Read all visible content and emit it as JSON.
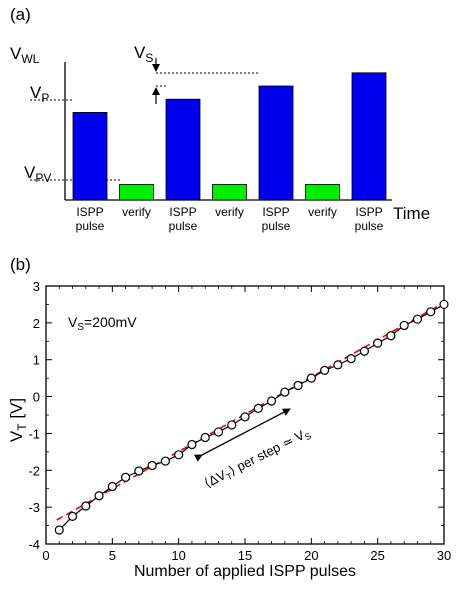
{
  "panel_a": {
    "tag": "(a)",
    "y_label_main": "V",
    "y_label_sub": "WL",
    "vs_main": "V",
    "vs_sub": "S",
    "vp_main": "V",
    "vp_sub": "P",
    "vpv_main": "V",
    "vpv_sub": "PV",
    "x_label": "Time",
    "colors": {
      "pulse": "#0000ee",
      "verify": "#00ee00"
    },
    "bars": [
      {
        "kind": "pulse",
        "label_line1": "ISPP",
        "label_line2": "pulse",
        "level": 0.73
      },
      {
        "kind": "verify",
        "label_line1": "verify",
        "label_line2": "",
        "level": 0.13
      },
      {
        "kind": "pulse",
        "label_line1": "ISPP",
        "label_line2": "pulse",
        "level": 0.84
      },
      {
        "kind": "verify",
        "label_line1": "verify",
        "label_line2": "",
        "level": 0.13
      },
      {
        "kind": "pulse",
        "label_line1": "ISPP",
        "label_line2": "pulse",
        "level": 0.95
      },
      {
        "kind": "verify",
        "label_line1": "verify",
        "label_line2": "",
        "level": 0.13
      },
      {
        "kind": "pulse",
        "label_line1": "ISPP",
        "label_line2": "pulse",
        "level": 1.06
      }
    ]
  },
  "panel_b": {
    "tag": "(b)",
    "annotation_vs": "V",
    "annotation_vs_sub": "S",
    "annotation_vs_rest": "=200mV",
    "arrow_label_pre": "⟨ΔV",
    "arrow_label_sub": "T",
    "arrow_label_post": "⟩ per step ≃ V",
    "arrow_label_sub2": "S",
    "ylabel_main": "V",
    "ylabel_sub": "T",
    "ylabel_rest": " [V]"
  },
  "chart_data": {
    "type": "scatter",
    "xlabel": "Number of applied ISPP pulses",
    "ylabel": "V_T [V]",
    "xlim": [
      0,
      30
    ],
    "ylim": [
      -4,
      3
    ],
    "xticks": [
      "0",
      "5",
      "10",
      "15",
      "20",
      "25",
      "30"
    ],
    "yticks": [
      "-4",
      "-3",
      "-2",
      "-1",
      "0",
      "1",
      "2",
      "3"
    ],
    "grid": false,
    "x": [
      1,
      2,
      3,
      4,
      5,
      6,
      7,
      8,
      9,
      10,
      11,
      12,
      13,
      14,
      15,
      16,
      17,
      18,
      19,
      20,
      21,
      22,
      23,
      24,
      25,
      26,
      27,
      28,
      29,
      30
    ],
    "y": [
      -3.62,
      -3.25,
      -2.97,
      -2.69,
      -2.44,
      -2.19,
      -2.02,
      -1.87,
      -1.75,
      -1.58,
      -1.3,
      -1.11,
      -0.96,
      -0.77,
      -0.55,
      -0.32,
      -0.12,
      0.12,
      0.3,
      0.5,
      0.71,
      0.86,
      1.03,
      1.23,
      1.45,
      1.65,
      1.93,
      2.1,
      2.3,
      2.5
    ],
    "fit_line": {
      "x": [
        0.8,
        30
      ],
      "y": [
        -3.35,
        2.55
      ],
      "color": "#dd0000",
      "style": "dashed"
    },
    "colors": {
      "markers": "#000000",
      "fit": "#dd0000"
    }
  }
}
